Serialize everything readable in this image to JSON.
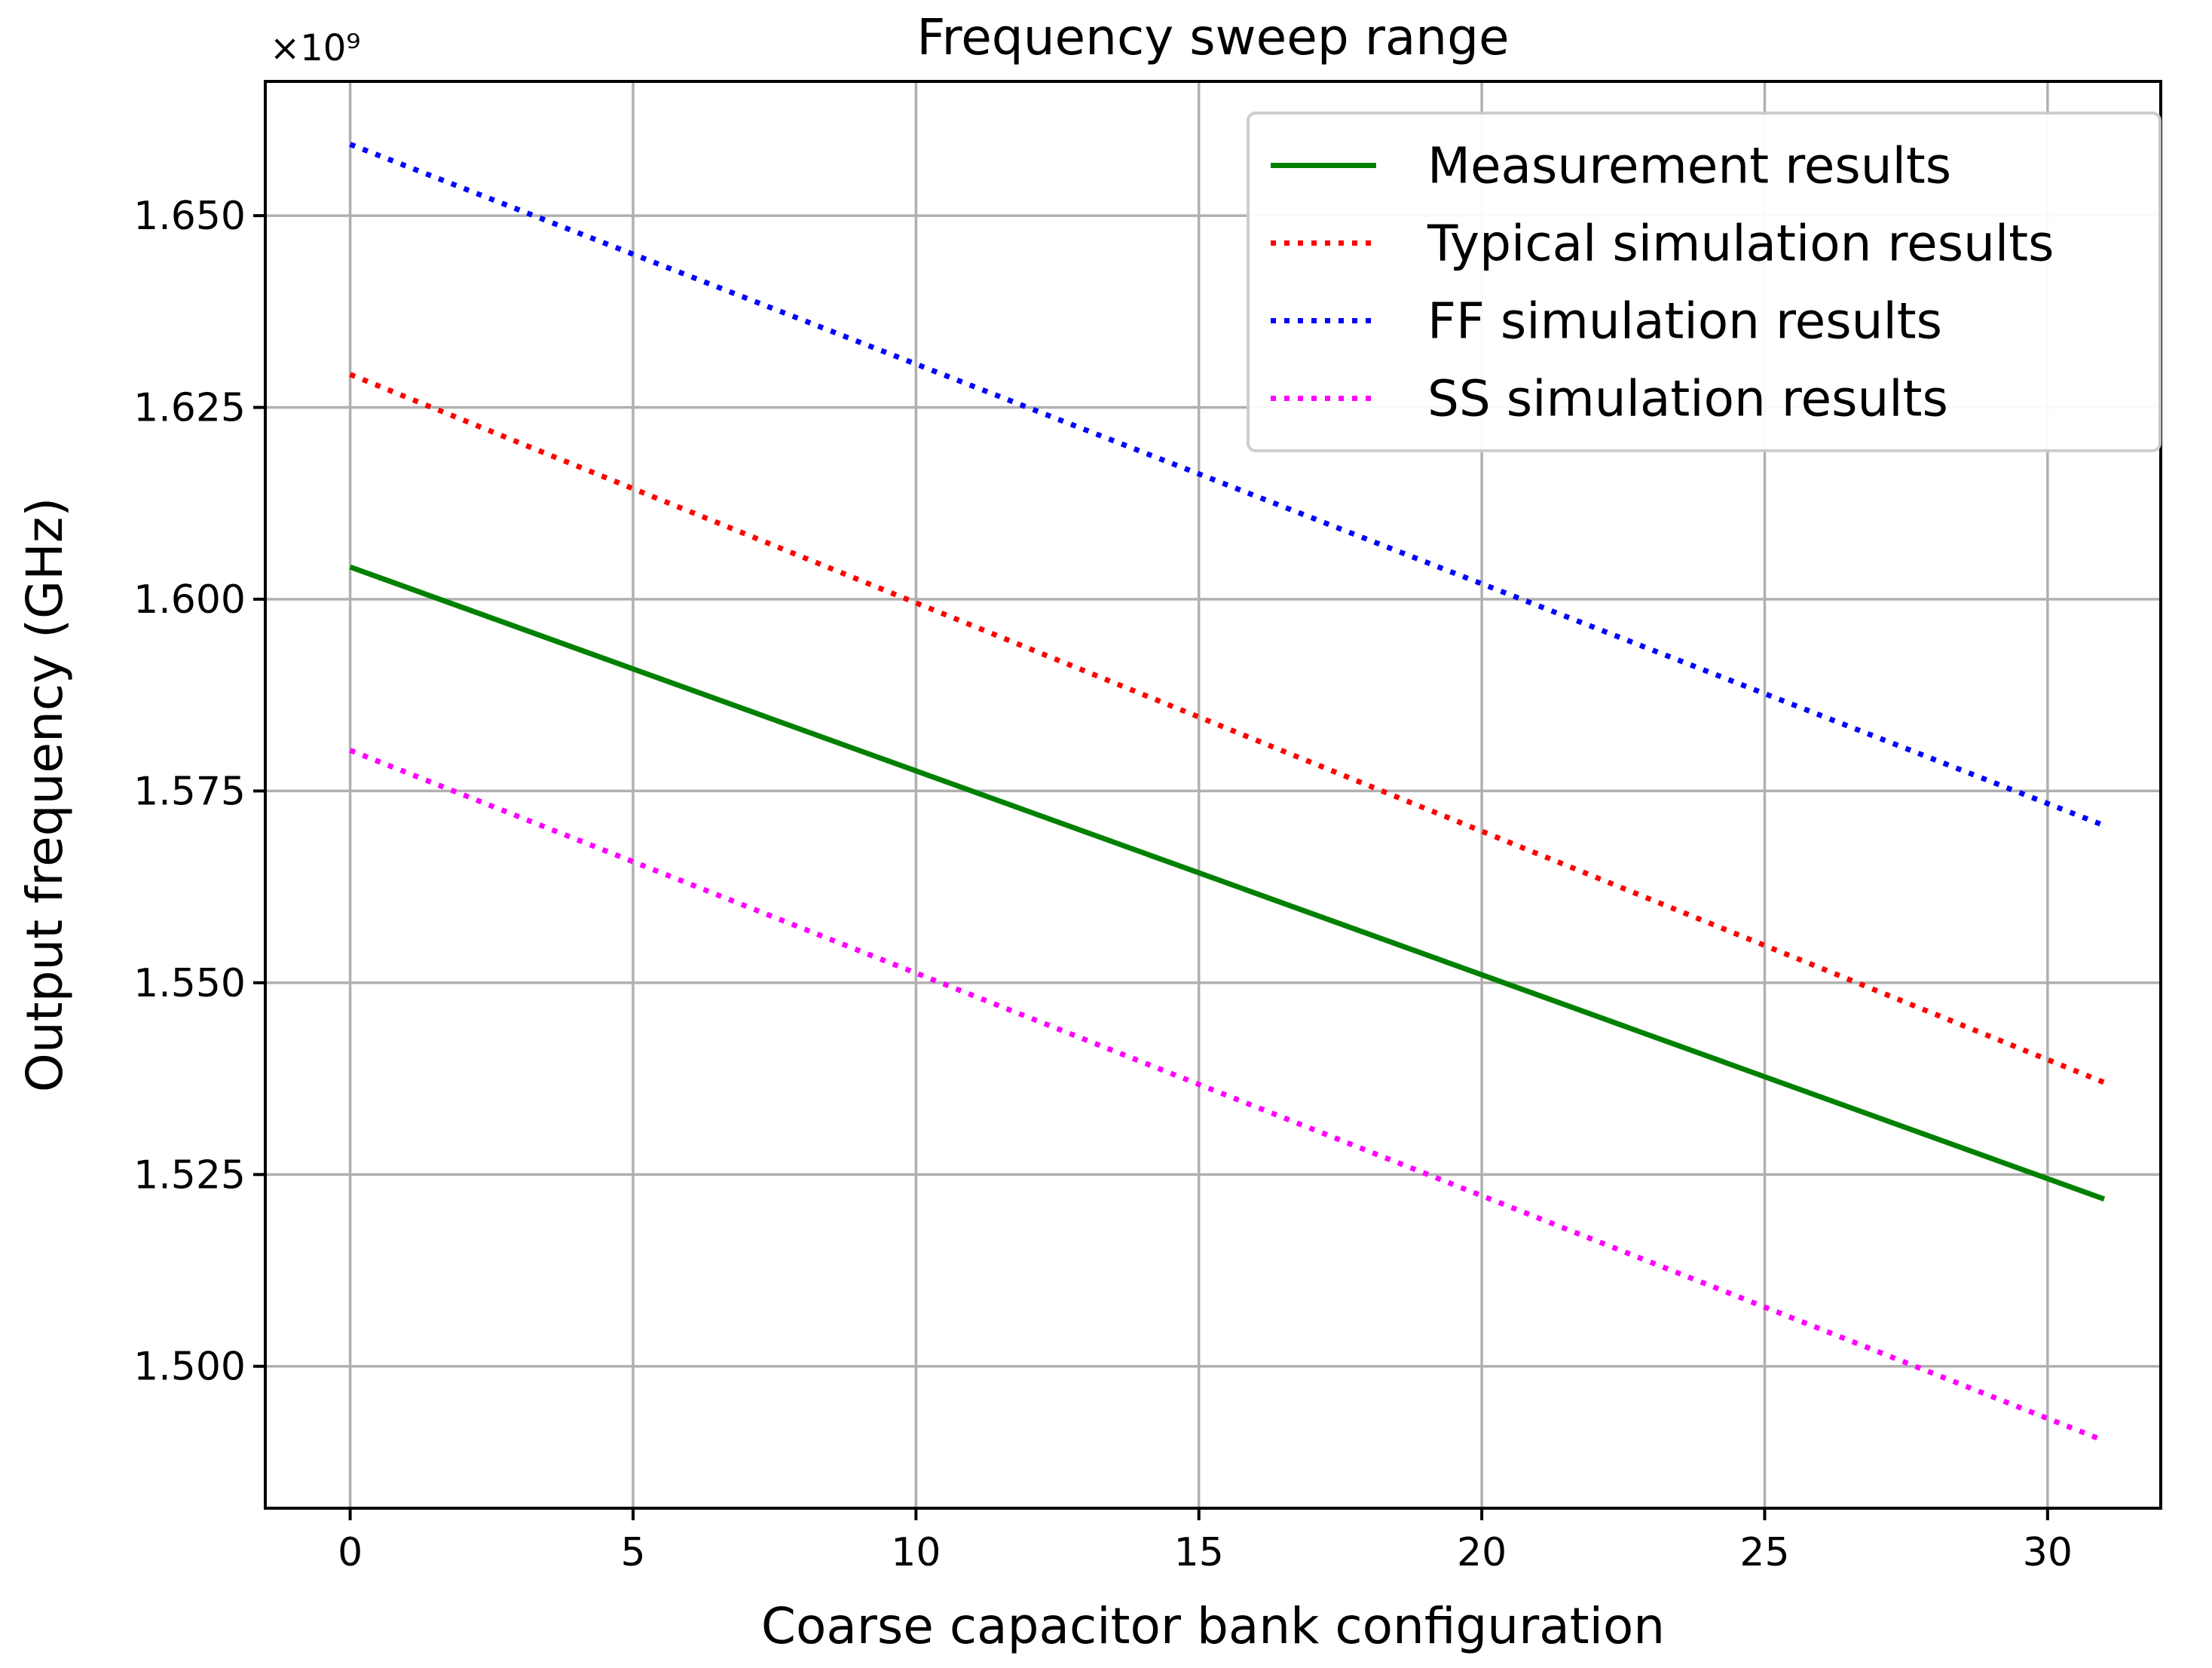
{
  "chart_data": {
    "type": "line",
    "title": "Frequency sweep range",
    "xlabel": "Coarse capacitor bank configuration",
    "ylabel": "Output frequency (GHz)",
    "y_offset_label": "×10⁹",
    "xlim": [
      -1.5,
      32
    ],
    "ylim": [
      1.4815,
      1.6675
    ],
    "x_ticks": [
      0,
      5,
      10,
      15,
      20,
      25,
      30
    ],
    "y_ticks": [
      1.5,
      1.525,
      1.55,
      1.575,
      1.6,
      1.625,
      1.65
    ],
    "y_tick_labels": [
      "1.500",
      "1.525",
      "1.550",
      "1.575",
      "1.600",
      "1.625",
      "1.650"
    ],
    "grid": true,
    "legend_position": "top-right",
    "series": [
      {
        "name": "Measurement results",
        "style": "solid",
        "color": "#008000",
        "x": [
          0,
          31
        ],
        "y": [
          1.6042,
          1.5218
        ]
      },
      {
        "name": "Typical simulation results",
        "style": "dotted",
        "color": "#ff0000",
        "x": [
          0,
          31
        ],
        "y": [
          1.6293,
          1.537
        ]
      },
      {
        "name": "FF simulation results",
        "style": "dotted",
        "color": "#0000ff",
        "x": [
          0,
          31
        ],
        "y": [
          1.6593,
          1.5705
        ]
      },
      {
        "name": "SS simulation results",
        "style": "dotted",
        "color": "#ff00ff",
        "x": [
          0,
          31
        ],
        "y": [
          1.5803,
          1.4903
        ]
      }
    ]
  }
}
